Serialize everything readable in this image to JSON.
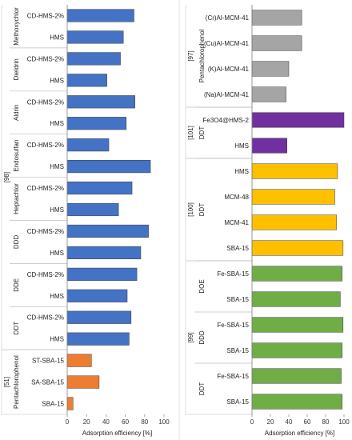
{
  "colors": {
    "blue": "#4472C4",
    "orange": "#ED7D31",
    "gray": "#A5A5A5",
    "purple": "#7030A0",
    "yellow": "#FFC000",
    "green": "#70AD47"
  },
  "chart_data": [
    {
      "type": "bar",
      "orientation": "horizontal",
      "panel": "left",
      "xlabel": "Adsorption efficiency [%]",
      "xlim": [
        0,
        100
      ],
      "xticks": [
        "0",
        "20",
        "40",
        "60",
        "80",
        "100"
      ],
      "grid": false,
      "refs": [
        {
          "label": "[98]",
          "groups": [
            0,
            1,
            2,
            3,
            4,
            5,
            6,
            7
          ]
        },
        {
          "label": "[51]",
          "groups": [
            8
          ]
        }
      ],
      "groups": [
        {
          "label": "Methoxychlor",
          "color": "blue",
          "bars": [
            {
              "category": "CD-HMS-2%",
              "value": 69
            },
            {
              "category": "HMS",
              "value": 58
            }
          ]
        },
        {
          "label": "Dieldrin",
          "color": "blue",
          "bars": [
            {
              "category": "CD-HMS-2%",
              "value": 55
            },
            {
              "category": "HMS",
              "value": 41
            }
          ]
        },
        {
          "label": "Aldrin",
          "color": "blue",
          "bars": [
            {
              "category": "CD-HMS-2%",
              "value": 70
            },
            {
              "category": "HMS",
              "value": 61
            }
          ]
        },
        {
          "label": "Endosulfan",
          "color": "blue",
          "bars": [
            {
              "category": "CD-HMS-2%",
              "value": 43
            },
            {
              "category": "HMS",
              "value": 86
            }
          ]
        },
        {
          "label": "Heptachlor",
          "color": "blue",
          "bars": [
            {
              "category": "CD-HMS-2%",
              "value": 67
            },
            {
              "category": "HMS",
              "value": 53
            }
          ]
        },
        {
          "label": "DDD",
          "color": "blue",
          "bars": [
            {
              "category": "CD-HMS-2%",
              "value": 84
            },
            {
              "category": "HMS",
              "value": 76
            }
          ]
        },
        {
          "label": "DDE",
          "color": "blue",
          "bars": [
            {
              "category": "CD-HMS-2%",
              "value": 72
            },
            {
              "category": "HMS",
              "value": 62
            }
          ]
        },
        {
          "label": "DDT",
          "color": "blue",
          "bars": [
            {
              "category": "CD-HMS-2%",
              "value": 66
            },
            {
              "category": "HMS",
              "value": 64
            }
          ]
        },
        {
          "label": "Pentachlorophenol",
          "color": "orange",
          "bars": [
            {
              "category": "ST-SBA-15",
              "value": 25
            },
            {
              "category": "SA-SBA-15",
              "value": 33
            },
            {
              "category": "SBA-15",
              "value": 6
            }
          ]
        }
      ]
    },
    {
      "type": "bar",
      "orientation": "horizontal",
      "panel": "right",
      "xlabel": "Adsorption efficiency [%]",
      "xlim": [
        0,
        100
      ],
      "xticks": [
        "0",
        "20",
        "40",
        "60",
        "80",
        "100"
      ],
      "grid": false,
      "refs": [
        {
          "label": "[97]",
          "groups": [
            0
          ]
        },
        {
          "label": "[101]",
          "groups": [
            1
          ]
        },
        {
          "label": "[100]",
          "groups": [
            2
          ]
        },
        {
          "label": "[99]",
          "groups": [
            3,
            4,
            5
          ]
        }
      ],
      "groups": [
        {
          "label": "Pentachlorophenol",
          "color": "gray",
          "bars": [
            {
              "category": "(Cr)Al-MCM-41",
              "value": 54
            },
            {
              "category": "(Cu)Al-MCM-41",
              "value": 54
            },
            {
              "category": "(K)Al-MCM-41",
              "value": 40
            },
            {
              "category": "(Na)Al-MCM-41",
              "value": 37
            }
          ]
        },
        {
          "label": "DDT",
          "color": "purple",
          "bars": [
            {
              "category": "Fe3O4@HMS-2",
              "value": 100
            },
            {
              "category": "HMS",
              "value": 38
            }
          ]
        },
        {
          "label": "DDT",
          "color": "yellow",
          "bars": [
            {
              "category": "HMS",
              "value": 93
            },
            {
              "category": "MCM-48",
              "value": 90
            },
            {
              "category": "MCM-41",
              "value": 92
            },
            {
              "category": "SBA-15",
              "value": 99
            }
          ]
        },
        {
          "label": "DOE",
          "color": "green",
          "bars": [
            {
              "category": "Fe-SBA-15",
              "value": 98
            },
            {
              "category": "SBA-15",
              "value": 96
            }
          ]
        },
        {
          "label": "DDD",
          "color": "green",
          "bars": [
            {
              "category": "Fe-SBA-15",
              "value": 99
            },
            {
              "category": "SBA-15",
              "value": 98
            }
          ]
        },
        {
          "label": "DDT",
          "color": "green",
          "bars": [
            {
              "category": "Fe-SBA-15",
              "value": 97
            },
            {
              "category": "SBA-15",
              "value": 98
            }
          ]
        }
      ]
    }
  ]
}
